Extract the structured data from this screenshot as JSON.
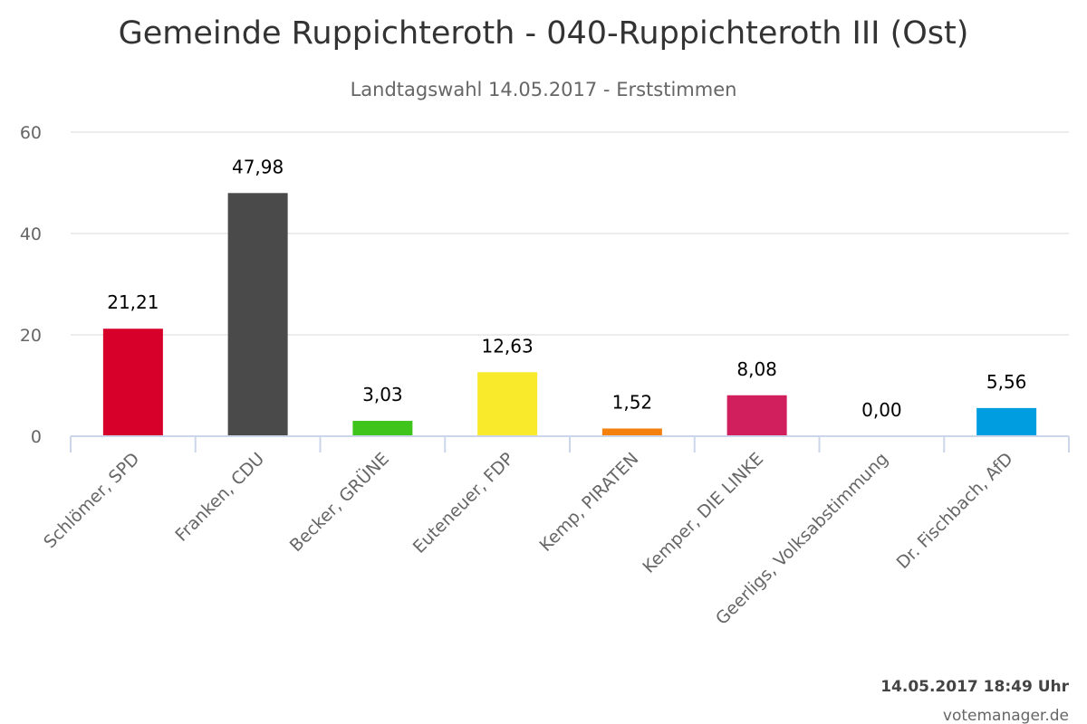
{
  "chart_data": {
    "type": "bar",
    "title": "Gemeinde Ruppichteroth - 040-Ruppichteroth III (Ost)",
    "subtitle": "Landtagswahl 14.05.2017 - Erststimmen",
    "categories": [
      "Schlömer, SPD",
      "Franken, CDU",
      "Becker, GRÜNE",
      "Euteneuer, FDP",
      "Kemp, PIRATEN",
      "Kemper, DIE LINKE",
      "Geerligs, Volksabstimmung",
      "Dr. Fischbach, AfD"
    ],
    "values": [
      21.21,
      47.98,
      3.03,
      12.63,
      1.52,
      8.08,
      0.0,
      5.56
    ],
    "value_labels": [
      "21,21",
      "47,98",
      "3,03",
      "12,63",
      "1,52",
      "8,08",
      "0,00",
      "5,56"
    ],
    "colors": [
      "#d7002a",
      "#4a4a4a",
      "#3fc41b",
      "#f9ea2c",
      "#f4810f",
      "#d11e5d",
      "#cccccc",
      "#009ee0"
    ],
    "yticks": [
      "0",
      "20",
      "40",
      "60"
    ],
    "ylim": [
      0,
      60
    ],
    "grid": true,
    "legend": "none"
  },
  "footer": {
    "timestamp": "14.05.2017 18:49 Uhr",
    "source": "votemanager.de"
  }
}
